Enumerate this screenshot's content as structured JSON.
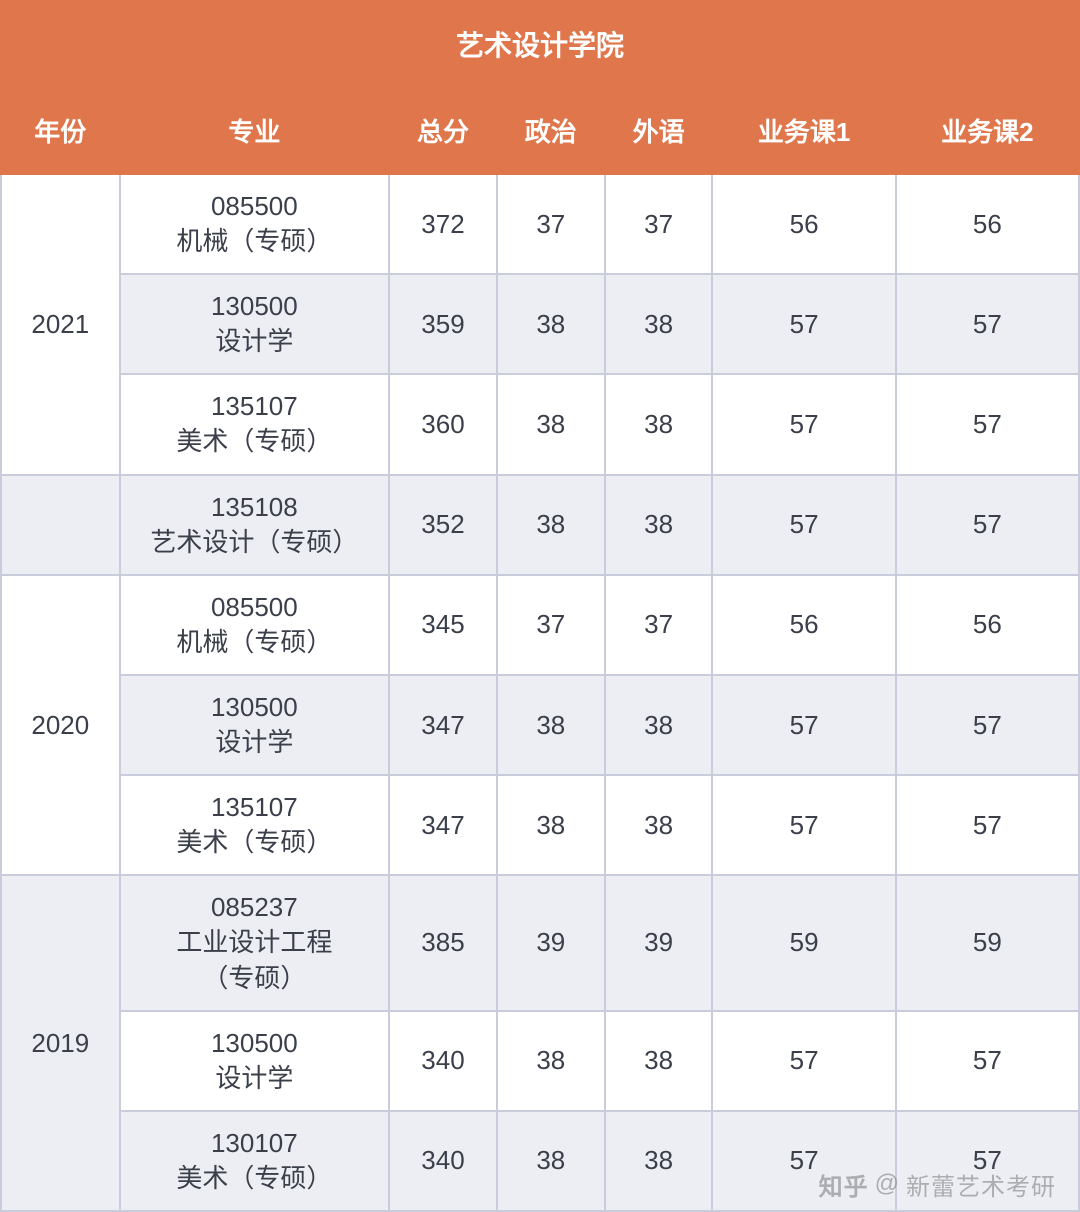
{
  "colors": {
    "header_bg": "#e0774c",
    "header_text": "#ffffff",
    "border": "#c9cddb",
    "row_alt_a": "#ffffff",
    "row_alt_b": "#eceef4",
    "cell_text": "#3a3f4a",
    "watermark": "rgba(120,120,120,0.55)"
  },
  "layout": {
    "col_widths_pct": [
      11,
      25,
      10,
      10,
      10,
      17,
      17
    ],
    "title_fontsize": 28,
    "header_fontsize": 26,
    "cell_fontsize": 26
  },
  "table": {
    "title": "艺术设计学院",
    "columns": [
      "年份",
      "专业",
      "总分",
      "政治",
      "外语",
      "业务课1",
      "业务课2"
    ],
    "groups": [
      {
        "year": "2021",
        "year_rowspan": 3,
        "rows": [
          {
            "major_code": "085500",
            "major_name": "机械（专硕）",
            "total": "372",
            "politics": "37",
            "foreign": "37",
            "course1": "56",
            "course2": "56",
            "show_year": true
          },
          {
            "major_code": "130500",
            "major_name": "设计学",
            "total": "359",
            "politics": "38",
            "foreign": "38",
            "course1": "57",
            "course2": "57",
            "show_year": false
          },
          {
            "major_code": "135107",
            "major_name": "美术（专硕）",
            "total": "360",
            "politics": "38",
            "foreign": "38",
            "course1": "57",
            "course2": "57",
            "show_year": false
          }
        ]
      },
      {
        "year": "",
        "year_rowspan": 1,
        "rows": [
          {
            "major_code": "135108",
            "major_name": "艺术设计（专硕）",
            "total": "352",
            "politics": "38",
            "foreign": "38",
            "course1": "57",
            "course2": "57",
            "show_year": true
          }
        ]
      },
      {
        "year": "2020",
        "year_rowspan": 3,
        "rows": [
          {
            "major_code": "085500",
            "major_name": "机械（专硕）",
            "total": "345",
            "politics": "37",
            "foreign": "37",
            "course1": "56",
            "course2": "56",
            "show_year": true
          },
          {
            "major_code": "130500",
            "major_name": "设计学",
            "total": "347",
            "politics": "38",
            "foreign": "38",
            "course1": "57",
            "course2": "57",
            "show_year": false
          },
          {
            "major_code": "135107",
            "major_name": "美术（专硕）",
            "total": "347",
            "politics": "38",
            "foreign": "38",
            "course1": "57",
            "course2": "57",
            "show_year": false
          }
        ]
      },
      {
        "year": "2019",
        "year_rowspan": 3,
        "rows": [
          {
            "major_code": "085237",
            "major_name": "工业设计工程\n（专硕）",
            "total": "385",
            "politics": "39",
            "foreign": "39",
            "course1": "59",
            "course2": "59",
            "show_year": true
          },
          {
            "major_code": "130500",
            "major_name": "设计学",
            "total": "340",
            "politics": "38",
            "foreign": "38",
            "course1": "57",
            "course2": "57",
            "show_year": false
          },
          {
            "major_code": "130107",
            "major_name": "美术（专硕）",
            "total": "340",
            "politics": "38",
            "foreign": "38",
            "course1": "57",
            "course2": "57",
            "show_year": false
          }
        ]
      }
    ]
  },
  "watermark": {
    "prefix": "知乎",
    "at": "@",
    "author": "新蕾艺术考研"
  }
}
